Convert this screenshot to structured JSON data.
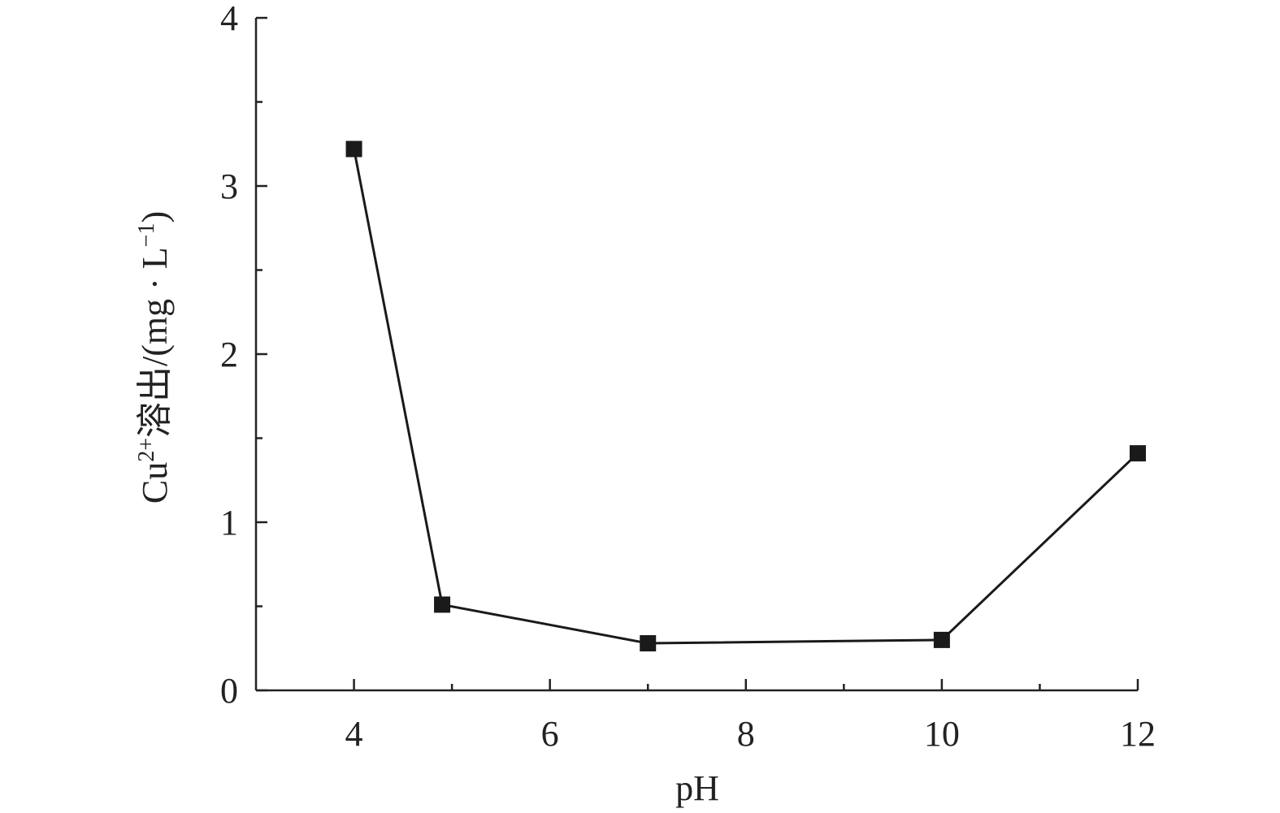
{
  "chart_data": {
    "type": "line",
    "xlabel": "pH",
    "ylabel_main": "Cu",
    "ylabel_sup1": "2+",
    "ylabel_mid": "溶出/(mg · L",
    "ylabel_sup2": "−1",
    "ylabel_end": ")",
    "xlim": [
      3,
      12
    ],
    "ylim": [
      0,
      4
    ],
    "xticks_major": [
      4,
      6,
      8,
      10,
      12
    ],
    "xticks_minor": [
      5,
      7,
      9,
      11
    ],
    "yticks_major": [
      0,
      1,
      2,
      3,
      4
    ],
    "yticks_minor": [
      0.5,
      1.5,
      2.5,
      3.5
    ],
    "grid": false,
    "series": [
      {
        "marker": "square",
        "color": "#1a1a1a",
        "x": [
          4,
          4.9,
          7,
          10,
          12
        ],
        "y": [
          3.22,
          0.51,
          0.28,
          0.3,
          1.41
        ]
      }
    ]
  }
}
